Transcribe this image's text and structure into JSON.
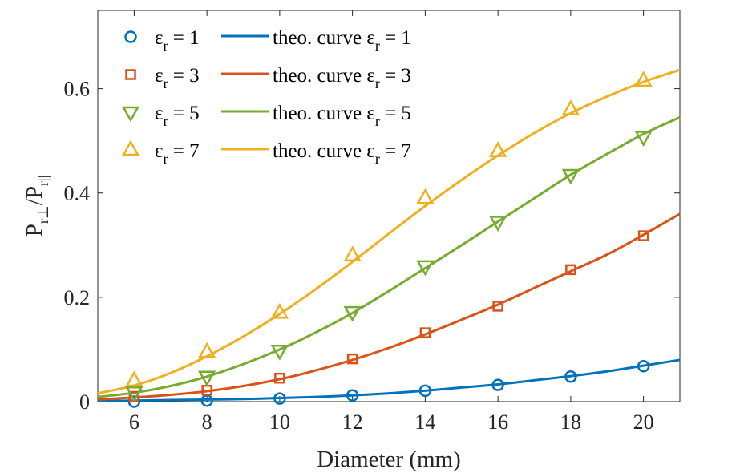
{
  "chart_data": {
    "type": "line",
    "title": "",
    "xlabel": "Diameter (mm)",
    "ylabel": {
      "base1": "P",
      "sub1": "r⊥",
      "sep": "/",
      "base2": "P",
      "sub2": "r||"
    },
    "xlim": [
      5,
      21
    ],
    "ylim": [
      0,
      0.75
    ],
    "xticks": [
      6,
      8,
      10,
      12,
      14,
      16,
      18,
      20
    ],
    "yticks": [
      0,
      0.2,
      0.4,
      0.6
    ],
    "ytick_labels": [
      "0",
      "0.2",
      "0.4",
      "0.6"
    ],
    "grid": false,
    "legend_position": "top-left",
    "series": [
      {
        "name": "εr = 1",
        "color": "#0072BD",
        "marker": "circle",
        "x": [
          6,
          8,
          10,
          12,
          14,
          16,
          18,
          20
        ],
        "y": [
          0.0,
          0.002,
          0.006,
          0.012,
          0.021,
          0.032,
          0.048,
          0.068
        ],
        "curve_x": [
          5,
          6,
          7,
          8,
          9,
          10,
          11,
          12,
          13,
          14,
          15,
          16,
          17,
          18,
          19,
          20,
          21
        ],
        "curve_y": [
          0.001,
          0.002,
          0.003,
          0.004,
          0.005,
          0.007,
          0.009,
          0.012,
          0.016,
          0.021,
          0.027,
          0.033,
          0.041,
          0.049,
          0.058,
          0.069,
          0.08
        ],
        "legend_label": {
          "base": "ε",
          "sub": "r",
          "rest": " = 1"
        },
        "curve_legend_label": {
          "base": "theo. curve ε",
          "sub": "r",
          "rest": " = 1"
        }
      },
      {
        "name": "εr = 3",
        "color": "#D95319",
        "marker": "square",
        "x": [
          6,
          8,
          10,
          12,
          14,
          16,
          18,
          20
        ],
        "y": [
          0.01,
          0.022,
          0.045,
          0.082,
          0.132,
          0.183,
          0.253,
          0.318
        ],
        "curve_x": [
          5,
          6,
          7,
          8,
          9,
          10,
          11,
          12,
          13,
          14,
          15,
          16,
          17,
          18,
          19,
          20,
          21
        ],
        "curve_y": [
          0.004,
          0.008,
          0.013,
          0.02,
          0.03,
          0.043,
          0.06,
          0.08,
          0.103,
          0.129,
          0.157,
          0.186,
          0.218,
          0.25,
          0.282,
          0.32,
          0.36
        ],
        "legend_label": {
          "base": "ε",
          "sub": "r",
          "rest": " = 3"
        },
        "curve_legend_label": {
          "base": "theo. curve ε",
          "sub": "r",
          "rest": " = 3"
        }
      },
      {
        "name": "εr = 5",
        "color": "#77AC30",
        "marker": "triangle-down",
        "x": [
          6,
          8,
          10,
          12,
          14,
          16,
          18,
          20
        ],
        "y": [
          0.018,
          0.048,
          0.098,
          0.172,
          0.26,
          0.345,
          0.435,
          0.508
        ],
        "curve_x": [
          5,
          6,
          7,
          8,
          9,
          10,
          11,
          12,
          13,
          14,
          15,
          16,
          17,
          18,
          19,
          20,
          21
        ],
        "curve_y": [
          0.009,
          0.017,
          0.03,
          0.048,
          0.072,
          0.1,
          0.133,
          0.17,
          0.212,
          0.256,
          0.3,
          0.345,
          0.39,
          0.435,
          0.475,
          0.513,
          0.545
        ],
        "legend_label": {
          "base": "ε",
          "sub": "r",
          "rest": " = 5"
        },
        "curve_legend_label": {
          "base": "theo. curve ε",
          "sub": "r",
          "rest": " = 5"
        }
      },
      {
        "name": "εr = 7",
        "color": "#EDB120",
        "marker": "triangle-up",
        "x": [
          6,
          8,
          10,
          12,
          14,
          16,
          18,
          20
        ],
        "y": [
          0.04,
          0.095,
          0.17,
          0.28,
          0.39,
          0.48,
          0.56,
          0.615
        ],
        "curve_x": [
          5,
          6,
          7,
          8,
          9,
          10,
          11,
          12,
          13,
          14,
          15,
          16,
          17,
          18,
          19,
          20,
          21
        ],
        "curve_y": [
          0.016,
          0.031,
          0.055,
          0.087,
          0.125,
          0.168,
          0.216,
          0.268,
          0.322,
          0.375,
          0.425,
          0.472,
          0.515,
          0.553,
          0.585,
          0.613,
          0.636
        ],
        "legend_label": {
          "base": "ε",
          "sub": "r",
          "rest": " = 7"
        },
        "curve_legend_label": {
          "base": "theo. curve ε",
          "sub": "r",
          "rest": " = 7"
        }
      }
    ]
  }
}
